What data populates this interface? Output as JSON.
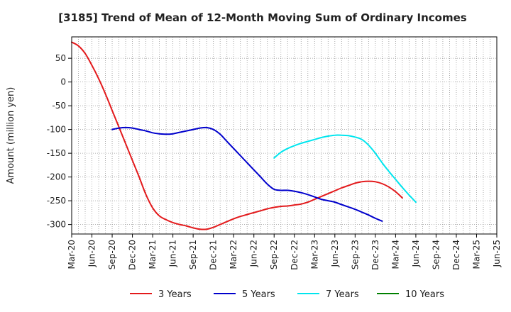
{
  "chart_data": {
    "type": "line",
    "title": "[3185]  Trend of Mean of 12-Month Moving Sum of Ordinary Incomes",
    "ylabel": "Amount (million yen)",
    "xlabel": "",
    "ylim": [
      -320,
      95
    ],
    "yticks": [
      50,
      0,
      -50,
      -100,
      -150,
      -200,
      -250,
      -300
    ],
    "xlim": [
      0,
      63
    ],
    "xticks": [
      {
        "label": "Mar-20",
        "i": 0
      },
      {
        "label": "Jun-20",
        "i": 3
      },
      {
        "label": "Sep-20",
        "i": 6
      },
      {
        "label": "Dec-20",
        "i": 9
      },
      {
        "label": "Mar-21",
        "i": 12
      },
      {
        "label": "Jun-21",
        "i": 15
      },
      {
        "label": "Sep-21",
        "i": 18
      },
      {
        "label": "Dec-21",
        "i": 21
      },
      {
        "label": "Mar-22",
        "i": 24
      },
      {
        "label": "Jun-22",
        "i": 27
      },
      {
        "label": "Sep-22",
        "i": 30
      },
      {
        "label": "Dec-22",
        "i": 33
      },
      {
        "label": "Mar-23",
        "i": 36
      },
      {
        "label": "Jun-23",
        "i": 39
      },
      {
        "label": "Sep-23",
        "i": 42
      },
      {
        "label": "Dec-23",
        "i": 45
      },
      {
        "label": "Mar-24",
        "i": 48
      },
      {
        "label": "Jun-24",
        "i": 51
      },
      {
        "label": "Sep-24",
        "i": 54
      },
      {
        "label": "Dec-24",
        "i": 57
      },
      {
        "label": "Mar-25",
        "i": 60
      },
      {
        "label": "Jun-25",
        "i": 63
      }
    ],
    "series": [
      {
        "name": "3 Years",
        "color": "#e31a1c",
        "points": [
          [
            0,
            84
          ],
          [
            1,
            76
          ],
          [
            2,
            60
          ],
          [
            3,
            35
          ],
          [
            4,
            7
          ],
          [
            5,
            -25
          ],
          [
            6,
            -60
          ],
          [
            7,
            -95
          ],
          [
            8,
            -130
          ],
          [
            9,
            -165
          ],
          [
            10,
            -200
          ],
          [
            11,
            -237
          ],
          [
            12,
            -265
          ],
          [
            13,
            -282
          ],
          [
            14,
            -290
          ],
          [
            15,
            -296
          ],
          [
            16,
            -300
          ],
          [
            17,
            -303
          ],
          [
            18,
            -307
          ],
          [
            19,
            -310
          ],
          [
            20,
            -310
          ],
          [
            21,
            -306
          ],
          [
            22,
            -300
          ],
          [
            23,
            -294
          ],
          [
            24,
            -288
          ],
          [
            25,
            -283
          ],
          [
            26,
            -279
          ],
          [
            27,
            -275
          ],
          [
            28,
            -271
          ],
          [
            29,
            -267
          ],
          [
            30,
            -264
          ],
          [
            31,
            -262
          ],
          [
            32,
            -261
          ],
          [
            33,
            -259
          ],
          [
            34,
            -257
          ],
          [
            35,
            -253
          ],
          [
            36,
            -247
          ],
          [
            37,
            -241
          ],
          [
            38,
            -235
          ],
          [
            39,
            -229
          ],
          [
            40,
            -223
          ],
          [
            41,
            -218
          ],
          [
            42,
            -213
          ],
          [
            43,
            -210
          ],
          [
            44,
            -209
          ],
          [
            45,
            -210
          ],
          [
            46,
            -214
          ],
          [
            47,
            -221
          ],
          [
            48,
            -231
          ],
          [
            49,
            -244
          ]
        ]
      },
      {
        "name": "5 Years",
        "color": "#0000cc",
        "points": [
          [
            6,
            -100
          ],
          [
            7,
            -97
          ],
          [
            8,
            -96
          ],
          [
            9,
            -97
          ],
          [
            10,
            -100
          ],
          [
            11,
            -103
          ],
          [
            12,
            -107
          ],
          [
            13,
            -109
          ],
          [
            14,
            -110
          ],
          [
            15,
            -109
          ],
          [
            16,
            -106
          ],
          [
            17,
            -103
          ],
          [
            18,
            -100
          ],
          [
            19,
            -97
          ],
          [
            20,
            -96
          ],
          [
            21,
            -100
          ],
          [
            22,
            -110
          ],
          [
            23,
            -125
          ],
          [
            24,
            -140
          ],
          [
            25,
            -155
          ],
          [
            26,
            -170
          ],
          [
            27,
            -185
          ],
          [
            28,
            -200
          ],
          [
            29,
            -215
          ],
          [
            30,
            -226
          ],
          [
            31,
            -228
          ],
          [
            32,
            -228
          ],
          [
            33,
            -230
          ],
          [
            34,
            -233
          ],
          [
            35,
            -237
          ],
          [
            36,
            -242
          ],
          [
            37,
            -247
          ],
          [
            38,
            -250
          ],
          [
            39,
            -253
          ],
          [
            40,
            -258
          ],
          [
            41,
            -263
          ],
          [
            42,
            -268
          ],
          [
            43,
            -274
          ],
          [
            44,
            -280
          ],
          [
            45,
            -287
          ],
          [
            46,
            -293
          ]
        ]
      },
      {
        "name": "7 Years",
        "color": "#00e5ee",
        "points": [
          [
            30,
            -160
          ],
          [
            31,
            -148
          ],
          [
            32,
            -140
          ],
          [
            33,
            -134
          ],
          [
            34,
            -129
          ],
          [
            35,
            -125
          ],
          [
            36,
            -121
          ],
          [
            37,
            -117
          ],
          [
            38,
            -114
          ],
          [
            39,
            -112
          ],
          [
            40,
            -112
          ],
          [
            41,
            -113
          ],
          [
            42,
            -116
          ],
          [
            43,
            -121
          ],
          [
            44,
            -133
          ],
          [
            45,
            -150
          ],
          [
            46,
            -170
          ],
          [
            47,
            -188
          ],
          [
            48,
            -205
          ],
          [
            49,
            -222
          ],
          [
            50,
            -238
          ],
          [
            51,
            -253
          ]
        ]
      },
      {
        "name": "10 Years",
        "color": "#008000",
        "points": []
      }
    ],
    "legend_position": "bottom",
    "grid": true
  }
}
